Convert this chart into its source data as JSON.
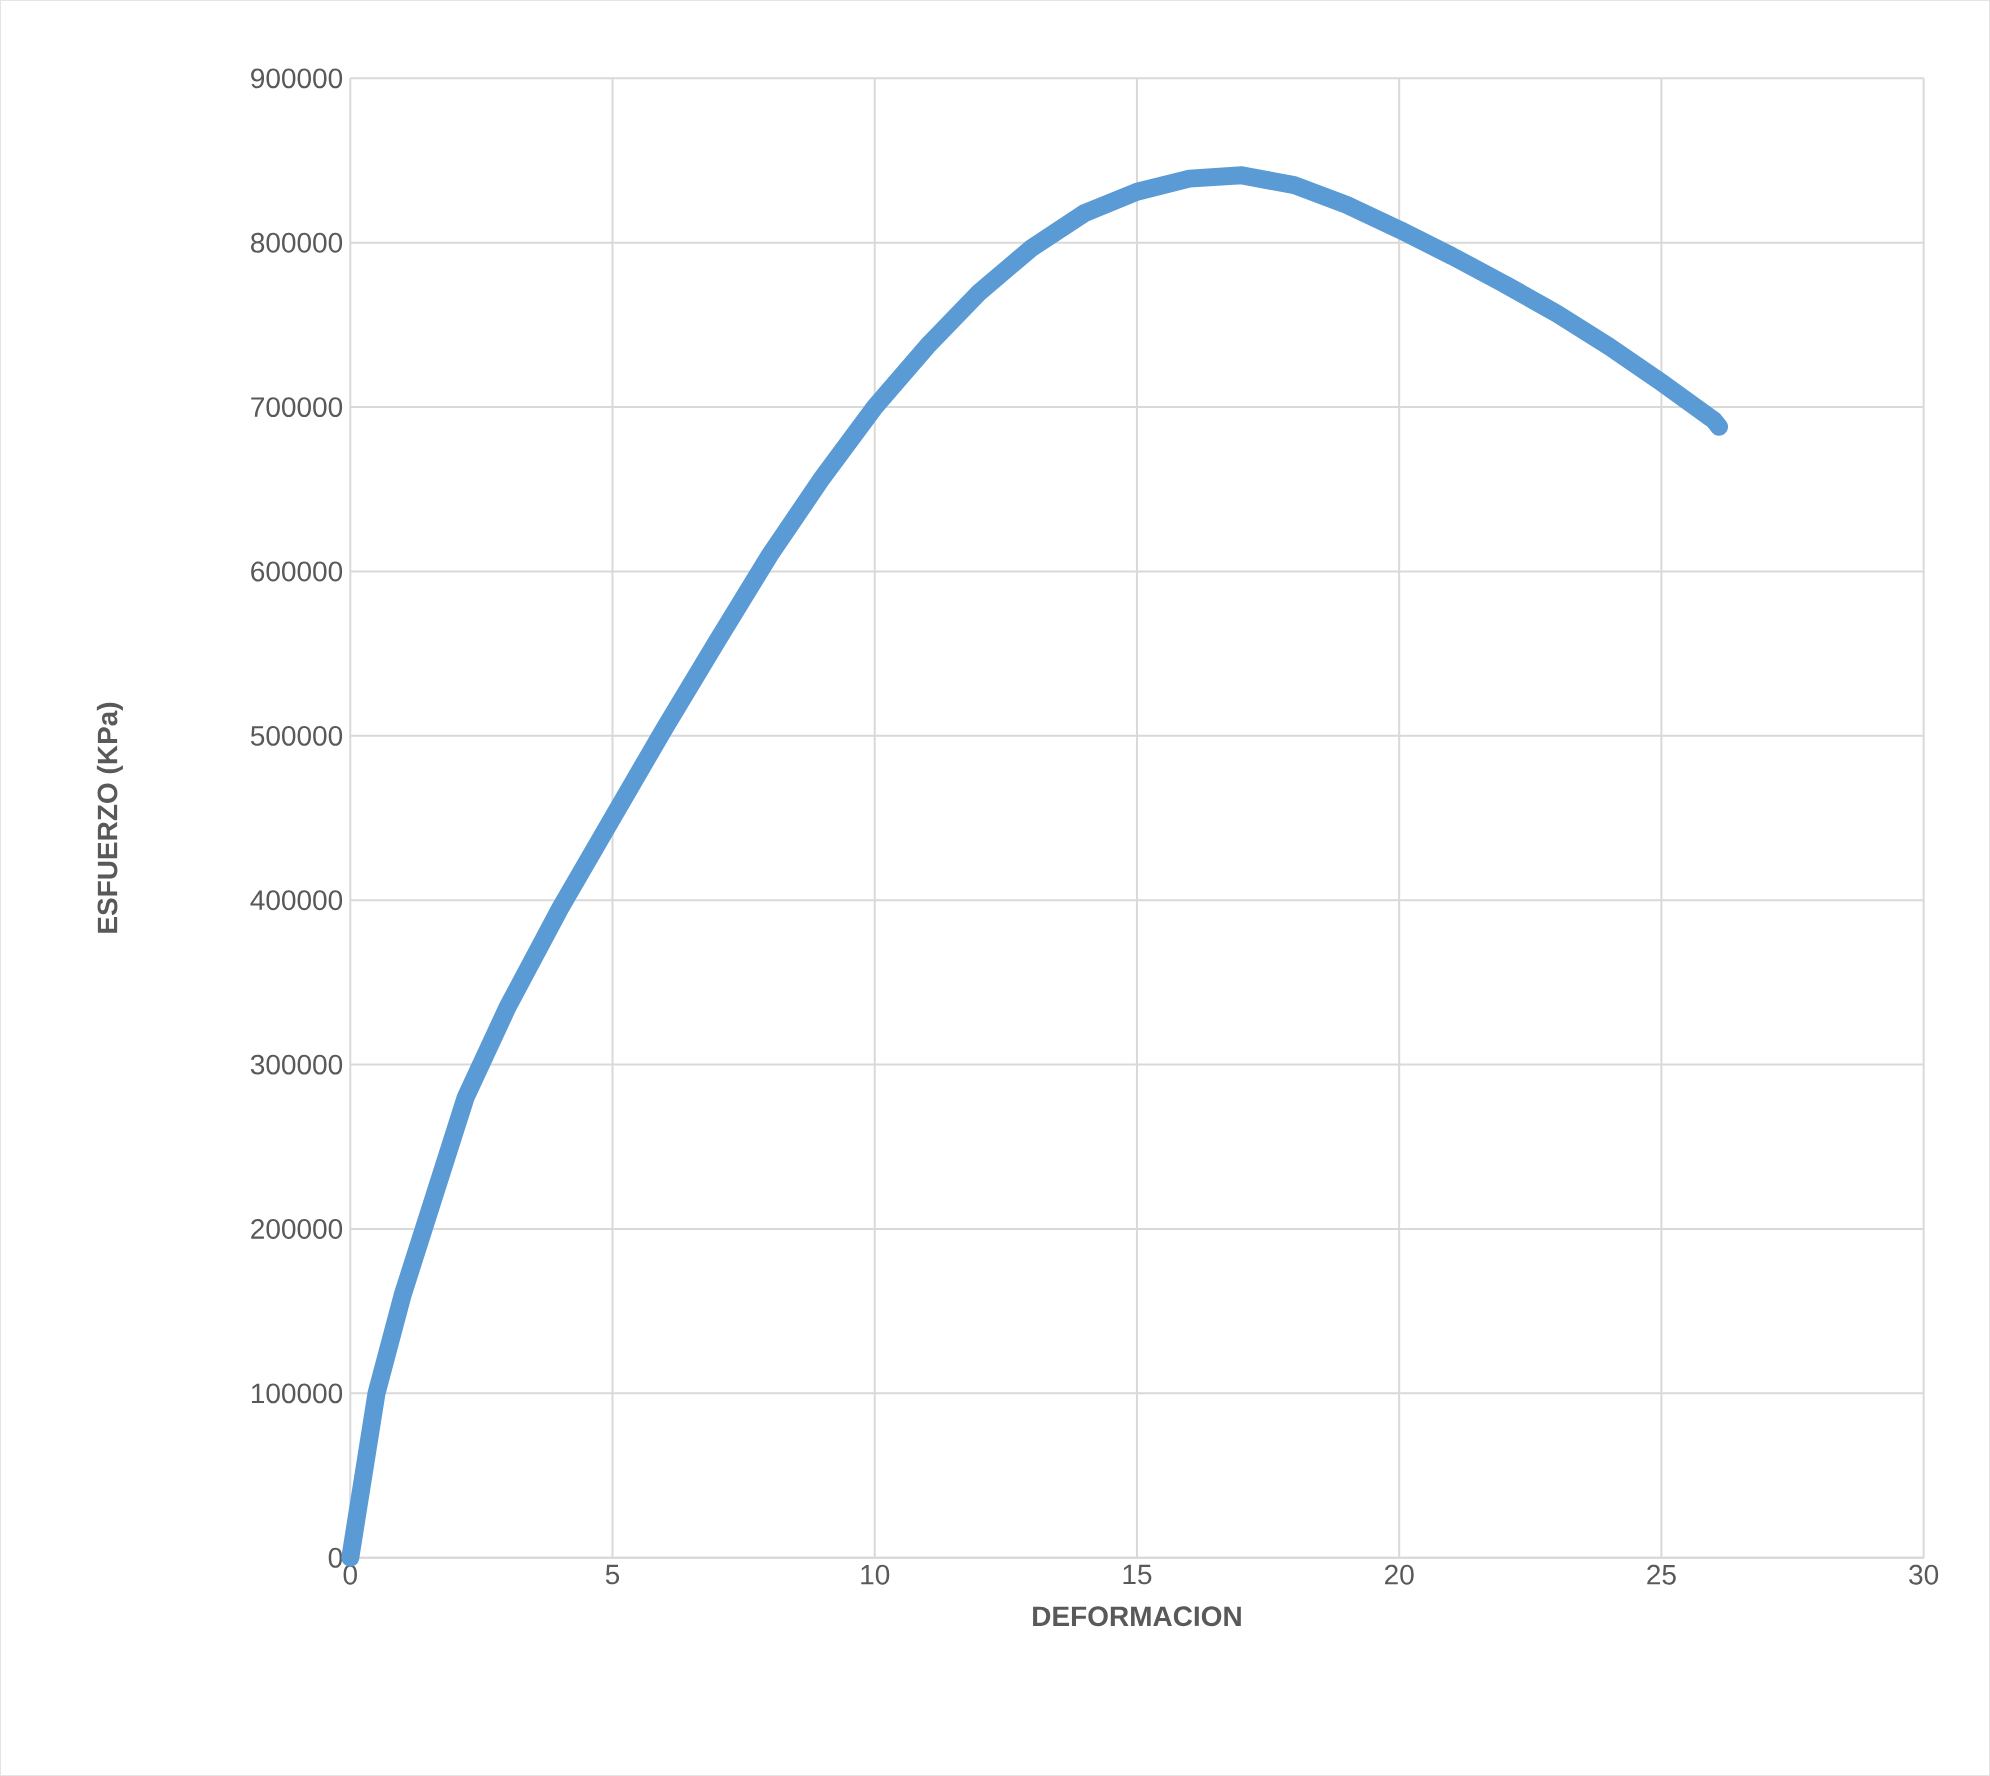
{
  "chart_data": {
    "type": "line",
    "xlabel": "DEFORMACION",
    "ylabel": "ESFUERZO (KPa)",
    "color": "#5b9bd5",
    "grid": true,
    "marker": "none",
    "line_style": "solid",
    "x": [
      0,
      0.2,
      0.5,
      1,
      1.6,
      2.2,
      3,
      4,
      5,
      6,
      7,
      8,
      9,
      10,
      11,
      12,
      13,
      14,
      15,
      16,
      17,
      18,
      19,
      20,
      21,
      22,
      23,
      24,
      25,
      26,
      26.1
    ],
    "values": [
      0,
      40000,
      100000,
      160000,
      220000,
      280000,
      335000,
      395000,
      450000,
      505000,
      558000,
      610000,
      657000,
      700000,
      737000,
      770000,
      797000,
      818000,
      831000,
      839000,
      841000,
      835000,
      823000,
      808000,
      792000,
      775000,
      757000,
      737000,
      715000,
      692000,
      688000
    ],
    "xlim": [
      0,
      30
    ],
    "xticks": [
      0,
      5,
      10,
      15,
      20,
      25,
      30
    ],
    "ylim": [
      0,
      900000
    ],
    "yticks": [
      0,
      100000,
      200000,
      300000,
      400000,
      500000,
      600000,
      700000,
      800000,
      900000
    ]
  }
}
